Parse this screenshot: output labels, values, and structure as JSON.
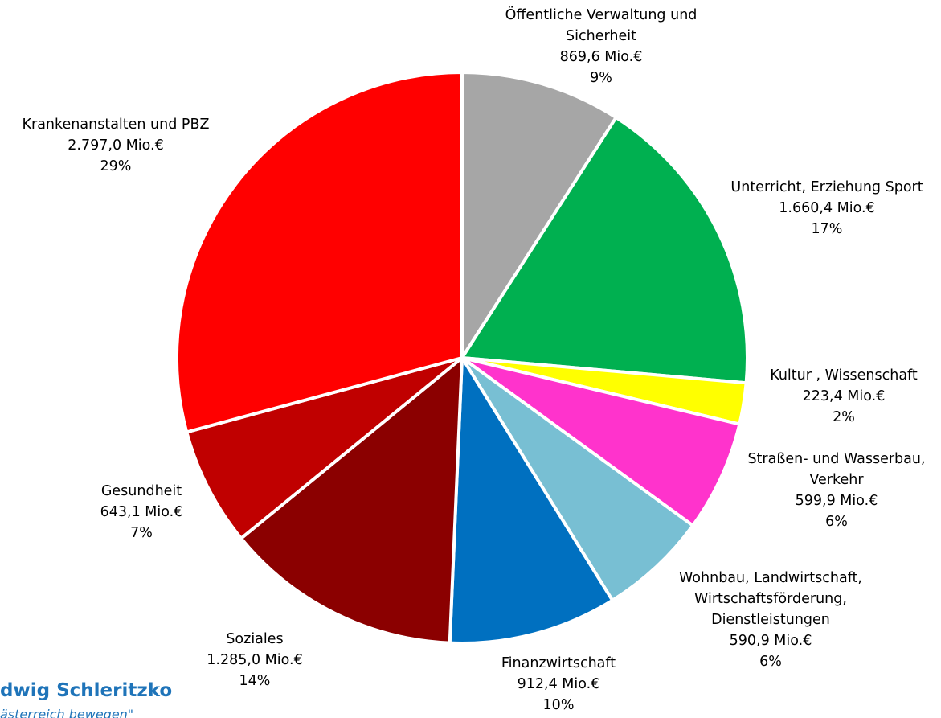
{
  "chart_data": {
    "type": "pie",
    "slices": [
      {
        "category": [
          "Öffentliche Verwaltung und",
          "Sicherheit"
        ],
        "value_label": "869,6 Mio.€",
        "pct_label": "9%",
        "value": 869.6,
        "color": "#a6a6a6"
      },
      {
        "category": [
          "Unterricht, Erziehung Sport"
        ],
        "value_label": "1.660,4 Mio.€",
        "pct_label": "17%",
        "value": 1660.4,
        "color": "#00b050"
      },
      {
        "category": [
          "Kultur , Wissenschaft"
        ],
        "value_label": "223,4 Mio.€",
        "pct_label": "2%",
        "value": 223.4,
        "color": "#ffff00"
      },
      {
        "category": [
          "Straßen- und Wasserbau,",
          "Verkehr"
        ],
        "value_label": "599,9 Mio.€",
        "pct_label": "6%",
        "value": 599.9,
        "color": "#ff33cc"
      },
      {
        "category": [
          "Wohnbau, Landwirtschaft,",
          "Wirtschaftsförderung,",
          "Dienstleistungen"
        ],
        "value_label": "590,9 Mio.€",
        "pct_label": "6%",
        "value": 590.9,
        "color": "#78bfd3"
      },
      {
        "category": [
          "Finanzwirtschaft"
        ],
        "value_label": "912,4 Mio.€",
        "pct_label": "10%",
        "value": 912.4,
        "color": "#0070c0"
      },
      {
        "category": [
          "Soziales"
        ],
        "value_label": "1.285,0 Mio.€",
        "pct_label": "14%",
        "value": 1285.0,
        "color": "#8b0000"
      },
      {
        "category": [
          "Gesundheit"
        ],
        "value_label": "643,1 Mio.€",
        "pct_label": "7%",
        "value": 643.1,
        "color": "#c00000"
      },
      {
        "category": [
          "Krankenanstalten und PBZ"
        ],
        "value_label": "2.797,0 Mio.€",
        "pct_label": "29%",
        "value": 2797.0,
        "color": "#ff0000"
      }
    ],
    "start_angle": "12 o'clock",
    "direction": "clockwise",
    "slice_separator_color": "#ffffff"
  },
  "footer": {
    "name": "dwig Schleritzko",
    "subtitle": "ästerreich bewegen\""
  }
}
